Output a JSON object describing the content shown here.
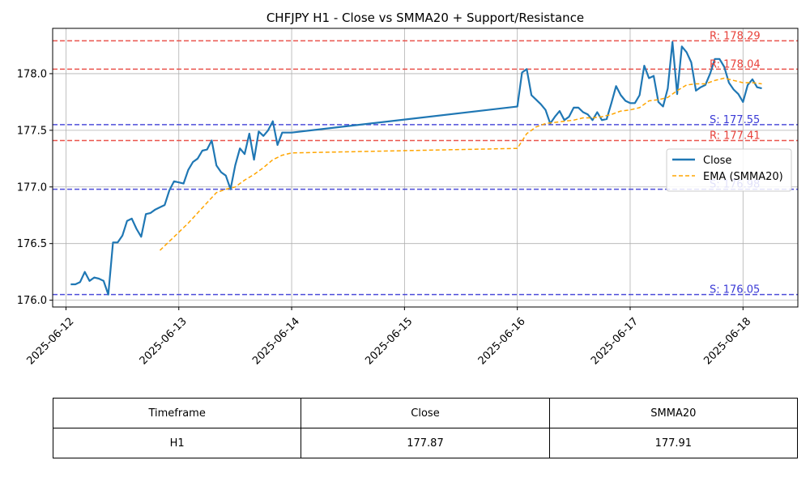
{
  "chart_data": {
    "type": "line",
    "title": "CHFJPY H1 - Close vs SMMA20 + Support/Resistance",
    "xlabel": "",
    "ylabel": "",
    "x_ticks": [
      "2025-06-12",
      "2025-06-13",
      "2025-06-14",
      "2025-06-15",
      "2025-06-16",
      "2025-06-17",
      "2025-06-18"
    ],
    "y_ticks": [
      "176.0",
      "176.5",
      "177.0",
      "177.5",
      "178.0"
    ],
    "xlim": [
      "2025-06-11 21:10",
      "2025-06-18 11:40"
    ],
    "ylim": [
      175.94,
      178.4
    ],
    "grid": true,
    "legend_position": "center-right",
    "series": [
      {
        "name": "Close",
        "color": "#1f77b4",
        "style": "solid",
        "points": [
          [
            "2025-06-12 01:00",
            176.14
          ],
          [
            "2025-06-12 02:00",
            176.14
          ],
          [
            "2025-06-12 03:00",
            176.16
          ],
          [
            "2025-06-12 04:00",
            176.25
          ],
          [
            "2025-06-12 05:00",
            176.17
          ],
          [
            "2025-06-12 06:00",
            176.2
          ],
          [
            "2025-06-12 07:00",
            176.19
          ],
          [
            "2025-06-12 08:00",
            176.17
          ],
          [
            "2025-06-12 09:00",
            176.05
          ],
          [
            "2025-06-12 10:00",
            176.51
          ],
          [
            "2025-06-12 11:00",
            176.51
          ],
          [
            "2025-06-12 12:00",
            176.57
          ],
          [
            "2025-06-12 13:00",
            176.7
          ],
          [
            "2025-06-12 14:00",
            176.72
          ],
          [
            "2025-06-12 15:00",
            176.63
          ],
          [
            "2025-06-12 16:00",
            176.56
          ],
          [
            "2025-06-12 17:00",
            176.76
          ],
          [
            "2025-06-12 18:00",
            176.77
          ],
          [
            "2025-06-12 19:00",
            176.8
          ],
          [
            "2025-06-12 20:00",
            176.82
          ],
          [
            "2025-06-12 21:00",
            176.84
          ],
          [
            "2025-06-12 22:00",
            176.97
          ],
          [
            "2025-06-12 23:00",
            177.05
          ],
          [
            "2025-06-13 00:00",
            177.04
          ],
          [
            "2025-06-13 01:00",
            177.03
          ],
          [
            "2025-06-13 02:00",
            177.15
          ],
          [
            "2025-06-13 03:00",
            177.22
          ],
          [
            "2025-06-13 04:00",
            177.25
          ],
          [
            "2025-06-13 05:00",
            177.32
          ],
          [
            "2025-06-13 06:00",
            177.33
          ],
          [
            "2025-06-13 07:00",
            177.41
          ],
          [
            "2025-06-13 08:00",
            177.19
          ],
          [
            "2025-06-13 09:00",
            177.13
          ],
          [
            "2025-06-13 10:00",
            177.1
          ],
          [
            "2025-06-13 11:00",
            176.98
          ],
          [
            "2025-06-13 12:00",
            177.19
          ],
          [
            "2025-06-13 13:00",
            177.34
          ],
          [
            "2025-06-13 14:00",
            177.29
          ],
          [
            "2025-06-13 15:00",
            177.47
          ],
          [
            "2025-06-13 16:00",
            177.24
          ],
          [
            "2025-06-13 17:00",
            177.49
          ],
          [
            "2025-06-13 18:00",
            177.45
          ],
          [
            "2025-06-13 19:00",
            177.5
          ],
          [
            "2025-06-13 20:00",
            177.58
          ],
          [
            "2025-06-13 21:00",
            177.37
          ],
          [
            "2025-06-13 22:00",
            177.48
          ],
          [
            "2025-06-13 23:00",
            177.48
          ],
          [
            "2025-06-14 00:00",
            177.48
          ],
          [
            "2025-06-16 00:00",
            177.71
          ],
          [
            "2025-06-16 01:00",
            178.01
          ],
          [
            "2025-06-16 02:00",
            178.04
          ],
          [
            "2025-06-16 03:00",
            177.81
          ],
          [
            "2025-06-16 04:00",
            177.77
          ],
          [
            "2025-06-16 05:00",
            177.73
          ],
          [
            "2025-06-16 06:00",
            177.68
          ],
          [
            "2025-06-16 07:00",
            177.56
          ],
          [
            "2025-06-16 08:00",
            177.62
          ],
          [
            "2025-06-16 09:00",
            177.67
          ],
          [
            "2025-06-16 10:00",
            177.59
          ],
          [
            "2025-06-16 11:00",
            177.62
          ],
          [
            "2025-06-16 12:00",
            177.7
          ],
          [
            "2025-06-16 13:00",
            177.7
          ],
          [
            "2025-06-16 14:00",
            177.66
          ],
          [
            "2025-06-16 15:00",
            177.64
          ],
          [
            "2025-06-16 16:00",
            177.59
          ],
          [
            "2025-06-16 17:00",
            177.66
          ],
          [
            "2025-06-16 18:00",
            177.59
          ],
          [
            "2025-06-16 19:00",
            177.6
          ],
          [
            "2025-06-16 20:00",
            177.74
          ],
          [
            "2025-06-16 21:00",
            177.89
          ],
          [
            "2025-06-16 22:00",
            177.81
          ],
          [
            "2025-06-16 23:00",
            177.76
          ],
          [
            "2025-06-17 00:00",
            177.74
          ],
          [
            "2025-06-17 01:00",
            177.74
          ],
          [
            "2025-06-17 02:00",
            177.81
          ],
          [
            "2025-06-17 03:00",
            178.07
          ],
          [
            "2025-06-17 04:00",
            177.96
          ],
          [
            "2025-06-17 05:00",
            177.98
          ],
          [
            "2025-06-17 06:00",
            177.75
          ],
          [
            "2025-06-17 07:00",
            177.71
          ],
          [
            "2025-06-17 08:00",
            177.87
          ],
          [
            "2025-06-17 09:00",
            178.28
          ],
          [
            "2025-06-17 10:00",
            177.82
          ],
          [
            "2025-06-17 11:00",
            178.24
          ],
          [
            "2025-06-17 12:00",
            178.19
          ],
          [
            "2025-06-17 13:00",
            178.1
          ],
          [
            "2025-06-17 14:00",
            177.85
          ],
          [
            "2025-06-17 15:00",
            177.88
          ],
          [
            "2025-06-17 16:00",
            177.9
          ],
          [
            "2025-06-17 17:00",
            178.0
          ],
          [
            "2025-06-17 18:00",
            178.13
          ],
          [
            "2025-06-17 19:00",
            178.13
          ],
          [
            "2025-06-17 20:00",
            178.06
          ],
          [
            "2025-06-17 21:00",
            177.92
          ],
          [
            "2025-06-17 22:00",
            177.86
          ],
          [
            "2025-06-17 23:00",
            177.82
          ],
          [
            "2025-06-18 00:00",
            177.75
          ],
          [
            "2025-06-18 01:00",
            177.9
          ],
          [
            "2025-06-18 02:00",
            177.95
          ],
          [
            "2025-06-18 03:00",
            177.88
          ],
          [
            "2025-06-18 04:00",
            177.87
          ]
        ]
      },
      {
        "name": "EMA (SMMA20)",
        "color": "#ffa500",
        "style": "dashed",
        "points": [
          [
            "2025-06-12 20:00",
            176.44
          ],
          [
            "2025-06-12 22:00",
            176.52
          ],
          [
            "2025-06-13 00:00",
            176.6
          ],
          [
            "2025-06-13 02:00",
            176.68
          ],
          [
            "2025-06-13 04:00",
            176.77
          ],
          [
            "2025-06-13 06:00",
            176.86
          ],
          [
            "2025-06-13 08:00",
            176.95
          ],
          [
            "2025-06-13 10:00",
            176.98
          ],
          [
            "2025-06-13 12:00",
            177.0
          ],
          [
            "2025-06-13 14:00",
            177.06
          ],
          [
            "2025-06-13 16:00",
            177.11
          ],
          [
            "2025-06-13 18:00",
            177.17
          ],
          [
            "2025-06-13 20:00",
            177.24
          ],
          [
            "2025-06-13 22:00",
            177.28
          ],
          [
            "2025-06-14 00:00",
            177.3
          ],
          [
            "2025-06-16 00:00",
            177.34
          ],
          [
            "2025-06-16 02:00",
            177.47
          ],
          [
            "2025-06-16 04:00",
            177.53
          ],
          [
            "2025-06-16 06:00",
            177.56
          ],
          [
            "2025-06-16 08:00",
            177.57
          ],
          [
            "2025-06-16 10:00",
            177.58
          ],
          [
            "2025-06-16 12:00",
            177.59
          ],
          [
            "2025-06-16 14:00",
            177.61
          ],
          [
            "2025-06-16 16:00",
            177.61
          ],
          [
            "2025-06-16 18:00",
            177.62
          ],
          [
            "2025-06-16 20:00",
            177.64
          ],
          [
            "2025-06-16 22:00",
            177.67
          ],
          [
            "2025-06-17 00:00",
            177.68
          ],
          [
            "2025-06-17 02:00",
            177.7
          ],
          [
            "2025-06-17 04:00",
            177.76
          ],
          [
            "2025-06-17 06:00",
            177.77
          ],
          [
            "2025-06-17 08:00",
            177.79
          ],
          [
            "2025-06-17 10:00",
            177.85
          ],
          [
            "2025-06-17 12:00",
            177.9
          ],
          [
            "2025-06-17 14:00",
            177.91
          ],
          [
            "2025-06-17 16:00",
            177.91
          ],
          [
            "2025-06-17 18:00",
            177.94
          ],
          [
            "2025-06-17 20:00",
            177.96
          ],
          [
            "2025-06-17 22:00",
            177.94
          ],
          [
            "2025-06-18 00:00",
            177.92
          ],
          [
            "2025-06-18 02:00",
            177.92
          ],
          [
            "2025-06-18 04:00",
            177.91
          ]
        ]
      }
    ],
    "levels": [
      {
        "kind": "resistance",
        "value": 178.29,
        "label": "R: 178.29",
        "color": "#e8413a"
      },
      {
        "kind": "resistance",
        "value": 178.04,
        "label": "R: 178.04",
        "color": "#e8413a"
      },
      {
        "kind": "support",
        "value": 177.55,
        "label": "S: 177.55",
        "color": "#3b3bd6"
      },
      {
        "kind": "resistance",
        "value": 177.41,
        "label": "R: 177.41",
        "color": "#e8413a"
      },
      {
        "kind": "support",
        "value": 176.98,
        "label": "S: 176.98",
        "color": "#3b3bd6"
      },
      {
        "kind": "support",
        "value": 176.05,
        "label": "S: 176.05",
        "color": "#3b3bd6"
      }
    ]
  },
  "table": {
    "headers": [
      "Timeframe",
      "Close",
      "SMMA20"
    ],
    "row": [
      "H1",
      "177.87",
      "177.91"
    ]
  }
}
